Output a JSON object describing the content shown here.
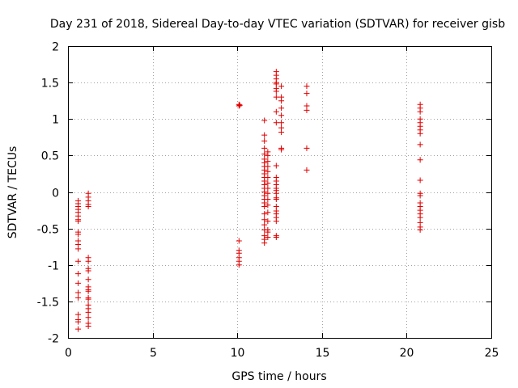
{
  "chart_data": {
    "type": "scatter",
    "title": "Day 231 of 2018, Sidereal Day-to-day VTEC variation (SDTVAR) for receiver gisb",
    "xlabel": "GPS time / hours",
    "ylabel": "SDTVAR / TECUs",
    "xlim": [
      0,
      25
    ],
    "ylim": [
      -2,
      2
    ],
    "xticks": [
      0,
      5,
      10,
      15,
      20,
      25
    ],
    "xtick_labels": [
      "0",
      "5",
      "10",
      "15",
      "20",
      "25"
    ],
    "yticks": [
      -2,
      -1.5,
      -1,
      -0.5,
      0,
      0.5,
      1,
      1.5,
      2
    ],
    "ytick_labels": [
      "-2",
      "-1.5",
      "-1",
      "-0.5",
      "0",
      "0.5",
      "1",
      "1.5",
      "2"
    ],
    "grid": true,
    "marker": "+",
    "series": [
      {
        "name": "SDTVAR",
        "color": "#e00000",
        "points": [
          [
            0.6,
            -0.12
          ],
          [
            0.6,
            -0.16
          ],
          [
            0.6,
            -0.2
          ],
          [
            0.6,
            -0.24
          ],
          [
            0.6,
            -0.28
          ],
          [
            0.6,
            -0.33
          ],
          [
            0.6,
            -0.38
          ],
          [
            0.6,
            -0.4
          ],
          [
            0.6,
            -0.55
          ],
          [
            0.6,
            -0.58
          ],
          [
            0.6,
            -0.67
          ],
          [
            0.6,
            -0.72
          ],
          [
            0.6,
            -0.78
          ],
          [
            0.6,
            -0.95
          ],
          [
            0.6,
            -1.12
          ],
          [
            0.6,
            -1.25
          ],
          [
            0.6,
            -1.38
          ],
          [
            0.6,
            -1.45
          ],
          [
            0.6,
            -1.68
          ],
          [
            0.6,
            -1.75
          ],
          [
            0.6,
            -1.78
          ],
          [
            0.6,
            -1.88
          ],
          [
            1.2,
            -0.02
          ],
          [
            1.2,
            -0.07
          ],
          [
            1.2,
            -0.12
          ],
          [
            1.2,
            -0.17
          ],
          [
            1.2,
            -0.2
          ],
          [
            1.2,
            -0.9
          ],
          [
            1.2,
            -0.95
          ],
          [
            1.2,
            -1.05
          ],
          [
            1.2,
            -1.08
          ],
          [
            1.2,
            -1.2
          ],
          [
            1.2,
            -1.3
          ],
          [
            1.2,
            -1.34
          ],
          [
            1.2,
            -1.36
          ],
          [
            1.2,
            -1.45
          ],
          [
            1.2,
            -1.47
          ],
          [
            1.2,
            -1.55
          ],
          [
            1.2,
            -1.6
          ],
          [
            1.2,
            -1.65
          ],
          [
            1.2,
            -1.72
          ],
          [
            1.2,
            -1.8
          ],
          [
            1.2,
            -1.84
          ],
          [
            10.1,
            1.18
          ],
          [
            10.1,
            1.2
          ],
          [
            10.15,
            1.19
          ],
          [
            10.1,
            -0.67
          ],
          [
            10.1,
            -0.8
          ],
          [
            10.1,
            -0.84
          ],
          [
            10.1,
            -0.9
          ],
          [
            10.1,
            -0.95
          ],
          [
            10.1,
            -1.0
          ],
          [
            11.6,
            0.98
          ],
          [
            11.6,
            0.78
          ],
          [
            11.6,
            0.7
          ],
          [
            11.6,
            0.6
          ],
          [
            11.6,
            0.52
          ],
          [
            11.6,
            0.45
          ],
          [
            11.6,
            0.4
          ],
          [
            11.6,
            0.35
          ],
          [
            11.6,
            0.3
          ],
          [
            11.6,
            0.25
          ],
          [
            11.6,
            0.2
          ],
          [
            11.6,
            0.15
          ],
          [
            11.6,
            0.1
          ],
          [
            11.6,
            0.05
          ],
          [
            11.6,
            0.0
          ],
          [
            11.6,
            -0.05
          ],
          [
            11.6,
            -0.1
          ],
          [
            11.6,
            -0.15
          ],
          [
            11.6,
            -0.2
          ],
          [
            11.6,
            -0.3
          ],
          [
            11.6,
            -0.38
          ],
          [
            11.6,
            -0.45
          ],
          [
            11.6,
            -0.52
          ],
          [
            11.6,
            -0.6
          ],
          [
            11.6,
            -0.65
          ],
          [
            11.6,
            -0.7
          ],
          [
            11.8,
            0.55
          ],
          [
            11.8,
            0.5
          ],
          [
            11.8,
            0.42
          ],
          [
            11.8,
            0.35
          ],
          [
            11.8,
            0.28
          ],
          [
            11.8,
            0.2
          ],
          [
            11.8,
            0.12
          ],
          [
            11.8,
            0.05
          ],
          [
            11.8,
            -0.02
          ],
          [
            11.8,
            -0.1
          ],
          [
            11.8,
            -0.18
          ],
          [
            11.8,
            -0.28
          ],
          [
            11.8,
            -0.4
          ],
          [
            11.8,
            -0.52
          ],
          [
            11.8,
            -0.55
          ],
          [
            11.8,
            -0.62
          ],
          [
            12.3,
            1.65
          ],
          [
            12.3,
            1.6
          ],
          [
            12.3,
            1.55
          ],
          [
            12.3,
            1.5
          ],
          [
            12.3,
            1.48
          ],
          [
            12.3,
            1.42
          ],
          [
            12.3,
            1.38
          ],
          [
            12.3,
            1.3
          ],
          [
            12.3,
            1.1
          ],
          [
            12.3,
            0.95
          ],
          [
            12.3,
            0.36
          ],
          [
            12.3,
            0.2
          ],
          [
            12.3,
            0.15
          ],
          [
            12.3,
            0.1
          ],
          [
            12.3,
            0.05
          ],
          [
            12.3,
            0.02
          ],
          [
            12.3,
            -0.02
          ],
          [
            12.3,
            -0.08
          ],
          [
            12.3,
            -0.1
          ],
          [
            12.3,
            -0.2
          ],
          [
            12.3,
            -0.26
          ],
          [
            12.3,
            -0.3
          ],
          [
            12.3,
            -0.35
          ],
          [
            12.3,
            -0.4
          ],
          [
            12.3,
            -0.6
          ],
          [
            12.3,
            -0.62
          ],
          [
            12.6,
            1.45
          ],
          [
            12.6,
            1.3
          ],
          [
            12.6,
            1.25
          ],
          [
            12.6,
            1.15
          ],
          [
            12.6,
            1.05
          ],
          [
            12.6,
            0.95
          ],
          [
            12.6,
            0.88
          ],
          [
            12.6,
            0.82
          ],
          [
            12.6,
            0.6
          ],
          [
            12.6,
            0.58
          ],
          [
            14.1,
            1.45
          ],
          [
            14.1,
            1.35
          ],
          [
            14.1,
            1.18
          ],
          [
            14.1,
            1.12
          ],
          [
            14.1,
            0.6
          ],
          [
            14.1,
            0.3
          ],
          [
            20.8,
            1.2
          ],
          [
            20.8,
            1.15
          ],
          [
            20.8,
            1.1
          ],
          [
            20.8,
            1.0
          ],
          [
            20.8,
            0.95
          ],
          [
            20.8,
            0.9
          ],
          [
            20.8,
            0.85
          ],
          [
            20.8,
            0.8
          ],
          [
            20.8,
            0.65
          ],
          [
            20.8,
            0.44
          ],
          [
            20.8,
            0.16
          ],
          [
            20.8,
            -0.02
          ],
          [
            20.8,
            -0.05
          ],
          [
            20.8,
            -0.15
          ],
          [
            20.8,
            -0.2
          ],
          [
            20.8,
            -0.25
          ],
          [
            20.8,
            -0.3
          ],
          [
            20.8,
            -0.35
          ],
          [
            20.8,
            -0.42
          ],
          [
            20.8,
            -0.48
          ],
          [
            20.8,
            -0.52
          ]
        ]
      }
    ]
  }
}
